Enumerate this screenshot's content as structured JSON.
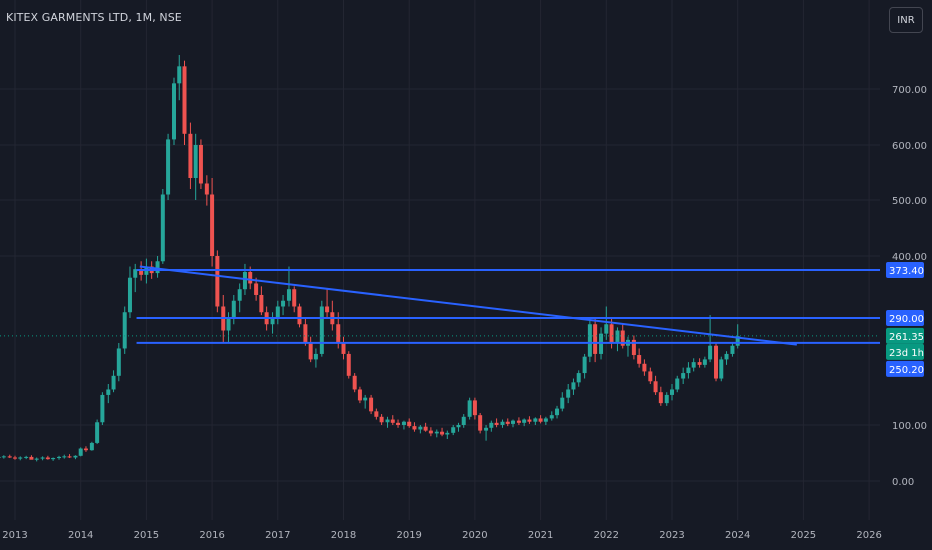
{
  "header": {
    "title": "KITEX GARMENTS LTD, 1M, NSE",
    "currency_button": "INR"
  },
  "colors": {
    "background": "#161a25",
    "up": "#26a69a",
    "down": "#ef5350",
    "lines": "#2962ff",
    "last_price_tag": "#089981"
  },
  "chart_data": {
    "type": "candlestick",
    "symbol": "KITEX GARMENTS LTD",
    "interval": "1M",
    "exchange": "NSE",
    "currency": "INR",
    "y_ticks": [
      "700.00",
      "600.00",
      "500.00",
      "400.00",
      "100.00",
      "0.00"
    ],
    "x_ticks": [
      "2013",
      "2014",
      "2015",
      "2016",
      "2017",
      "2018",
      "2019",
      "2020",
      "2021",
      "2022",
      "2023",
      "2024",
      "2025",
      "2026"
    ],
    "horizontal_levels": [
      373.4,
      290.0,
      250.2
    ],
    "price_tags": [
      {
        "label": "373.40",
        "value": 373.4,
        "color": "#2962ff"
      },
      {
        "label": "290.00",
        "value": 290.0,
        "color": "#2962ff"
      },
      {
        "label": "261.35",
        "value": 261.35,
        "color": "#089981"
      },
      {
        "label": "23d 1h",
        "value": 261.35,
        "color": "#089981",
        "note": "countdown"
      },
      {
        "label": "250.20",
        "value": 250.2,
        "color": "#2962ff"
      }
    ],
    "last_price": 261.35,
    "trendline": {
      "start": {
        "x": 2014.9,
        "y": 380
      },
      "end": {
        "x": 2024.9,
        "y": 247
      }
    },
    "candles": [
      [
        2012.5,
        40,
        45,
        36,
        44
      ],
      [
        2012.58,
        44,
        47,
        40,
        42
      ],
      [
        2012.67,
        42,
        46,
        38,
        41
      ],
      [
        2012.75,
        41,
        44,
        38,
        43
      ],
      [
        2012.83,
        43,
        46,
        40,
        44
      ],
      [
        2012.92,
        44,
        47,
        41,
        42
      ],
      [
        2013.0,
        42,
        45,
        38,
        40
      ],
      [
        2013.08,
        40,
        44,
        37,
        42
      ],
      [
        2013.17,
        42,
        45,
        39,
        43
      ],
      [
        2013.25,
        43,
        46,
        40,
        38
      ],
      [
        2013.33,
        38,
        42,
        35,
        40
      ],
      [
        2013.42,
        40,
        44,
        37,
        42
      ],
      [
        2013.5,
        42,
        45,
        38,
        39
      ],
      [
        2013.58,
        39,
        42,
        36,
        41
      ],
      [
        2013.67,
        41,
        45,
        38,
        43
      ],
      [
        2013.75,
        43,
        47,
        40,
        44
      ],
      [
        2013.83,
        44,
        48,
        41,
        42
      ],
      [
        2013.92,
        42,
        46,
        39,
        45
      ],
      [
        2014.0,
        45,
        60,
        44,
        58
      ],
      [
        2014.08,
        58,
        62,
        52,
        55
      ],
      [
        2014.17,
        55,
        70,
        54,
        68
      ],
      [
        2014.25,
        68,
        110,
        66,
        105
      ],
      [
        2014.33,
        105,
        160,
        100,
        155
      ],
      [
        2014.42,
        155,
        175,
        140,
        165
      ],
      [
        2014.5,
        165,
        200,
        160,
        190
      ],
      [
        2014.58,
        190,
        250,
        180,
        240
      ],
      [
        2014.67,
        240,
        310,
        230,
        300
      ],
      [
        2014.75,
        300,
        380,
        290,
        360
      ],
      [
        2014.83,
        360,
        385,
        335,
        375
      ],
      [
        2014.92,
        375,
        390,
        355,
        365
      ],
      [
        2015.0,
        365,
        395,
        350,
        380
      ],
      [
        2015.08,
        380,
        390,
        358,
        368
      ],
      [
        2015.17,
        368,
        400,
        360,
        390
      ],
      [
        2015.25,
        390,
        520,
        385,
        510
      ],
      [
        2015.33,
        510,
        620,
        500,
        610
      ],
      [
        2015.42,
        610,
        720,
        600,
        710
      ],
      [
        2015.5,
        710,
        760,
        680,
        740
      ],
      [
        2015.58,
        740,
        750,
        600,
        620
      ],
      [
        2015.67,
        620,
        640,
        520,
        540
      ],
      [
        2015.75,
        540,
        620,
        500,
        600
      ],
      [
        2015.83,
        600,
        610,
        520,
        530
      ],
      [
        2015.92,
        530,
        545,
        490,
        510
      ],
      [
        2016.0,
        510,
        540,
        380,
        400
      ],
      [
        2016.08,
        400,
        410,
        300,
        310
      ],
      [
        2016.17,
        310,
        330,
        250,
        270
      ],
      [
        2016.25,
        270,
        300,
        250,
        290
      ],
      [
        2016.33,
        290,
        330,
        280,
        320
      ],
      [
        2016.42,
        320,
        350,
        300,
        340
      ],
      [
        2016.5,
        340,
        385,
        330,
        370
      ],
      [
        2016.58,
        370,
        380,
        340,
        350
      ],
      [
        2016.67,
        350,
        360,
        320,
        330
      ],
      [
        2016.75,
        330,
        345,
        295,
        300
      ],
      [
        2016.83,
        300,
        310,
        270,
        280
      ],
      [
        2016.92,
        280,
        300,
        265,
        290
      ],
      [
        2017.0,
        290,
        320,
        280,
        310
      ],
      [
        2017.08,
        310,
        330,
        295,
        320
      ],
      [
        2017.17,
        320,
        380,
        310,
        340
      ],
      [
        2017.25,
        340,
        345,
        300,
        310
      ],
      [
        2017.33,
        310,
        315,
        275,
        280
      ],
      [
        2017.42,
        280,
        290,
        245,
        250
      ],
      [
        2017.5,
        250,
        260,
        215,
        220
      ],
      [
        2017.58,
        220,
        240,
        205,
        230
      ],
      [
        2017.67,
        230,
        320,
        225,
        310
      ],
      [
        2017.75,
        310,
        340,
        290,
        300
      ],
      [
        2017.83,
        300,
        320,
        270,
        280
      ],
      [
        2017.92,
        280,
        300,
        240,
        250
      ],
      [
        2018.0,
        250,
        260,
        220,
        230
      ],
      [
        2018.08,
        230,
        235,
        185,
        190
      ],
      [
        2018.17,
        190,
        195,
        160,
        165
      ],
      [
        2018.25,
        165,
        170,
        140,
        145
      ],
      [
        2018.33,
        145,
        155,
        130,
        150
      ],
      [
        2018.42,
        150,
        155,
        120,
        125
      ],
      [
        2018.5,
        125,
        130,
        110,
        115
      ],
      [
        2018.58,
        115,
        120,
        100,
        105
      ],
      [
        2018.67,
        105,
        115,
        95,
        110
      ],
      [
        2018.75,
        110,
        118,
        100,
        104
      ],
      [
        2018.83,
        104,
        110,
        95,
        100
      ],
      [
        2018.92,
        100,
        108,
        92,
        106
      ],
      [
        2019.0,
        106,
        112,
        95,
        98
      ],
      [
        2019.08,
        98,
        105,
        88,
        92
      ],
      [
        2019.17,
        92,
        100,
        85,
        97
      ],
      [
        2019.25,
        97,
        104,
        88,
        90
      ],
      [
        2019.33,
        90,
        96,
        80,
        85
      ],
      [
        2019.42,
        85,
        92,
        78,
        88
      ],
      [
        2019.5,
        88,
        95,
        80,
        83
      ],
      [
        2019.58,
        83,
        90,
        75,
        86
      ],
      [
        2019.67,
        86,
        100,
        82,
        96
      ],
      [
        2019.75,
        96,
        104,
        88,
        100
      ],
      [
        2019.83,
        100,
        120,
        95,
        115
      ],
      [
        2019.92,
        115,
        150,
        110,
        145
      ],
      [
        2020.0,
        145,
        150,
        110,
        118
      ],
      [
        2020.08,
        118,
        122,
        85,
        90
      ],
      [
        2020.17,
        90,
        100,
        72,
        95
      ],
      [
        2020.25,
        95,
        108,
        88,
        104
      ],
      [
        2020.33,
        104,
        112,
        96,
        100
      ],
      [
        2020.42,
        100,
        110,
        95,
        106
      ],
      [
        2020.5,
        106,
        112,
        98,
        102
      ],
      [
        2020.58,
        102,
        110,
        96,
        108
      ],
      [
        2020.67,
        108,
        114,
        100,
        104
      ],
      [
        2020.75,
        104,
        112,
        98,
        110
      ],
      [
        2020.83,
        110,
        116,
        102,
        106
      ],
      [
        2020.92,
        106,
        114,
        100,
        112
      ],
      [
        2021.0,
        112,
        118,
        103,
        106
      ],
      [
        2021.08,
        106,
        115,
        100,
        112
      ],
      [
        2021.17,
        112,
        125,
        108,
        118
      ],
      [
        2021.25,
        118,
        135,
        112,
        130
      ],
      [
        2021.33,
        130,
        160,
        125,
        150
      ],
      [
        2021.42,
        150,
        175,
        140,
        165
      ],
      [
        2021.5,
        165,
        185,
        155,
        178
      ],
      [
        2021.58,
        178,
        200,
        170,
        195
      ],
      [
        2021.67,
        195,
        230,
        185,
        225
      ],
      [
        2021.75,
        225,
        290,
        215,
        280
      ],
      [
        2021.83,
        280,
        290,
        215,
        230
      ],
      [
        2021.92,
        230,
        275,
        220,
        265
      ],
      [
        2022.0,
        265,
        310,
        255,
        280
      ],
      [
        2022.08,
        280,
        290,
        240,
        250
      ],
      [
        2022.17,
        250,
        275,
        235,
        270
      ],
      [
        2022.25,
        270,
        280,
        240,
        245
      ],
      [
        2022.33,
        245,
        260,
        225,
        255
      ],
      [
        2022.42,
        255,
        262,
        220,
        228
      ],
      [
        2022.5,
        228,
        240,
        205,
        212
      ],
      [
        2022.58,
        212,
        220,
        190,
        198
      ],
      [
        2022.67,
        198,
        205,
        175,
        180
      ],
      [
        2022.75,
        180,
        190,
        155,
        160
      ],
      [
        2022.83,
        160,
        170,
        135,
        140
      ],
      [
        2022.92,
        140,
        160,
        135,
        155
      ],
      [
        2023.0,
        155,
        175,
        145,
        165
      ],
      [
        2023.08,
        165,
        190,
        160,
        185
      ],
      [
        2023.17,
        185,
        205,
        175,
        195
      ],
      [
        2023.25,
        195,
        215,
        185,
        205
      ],
      [
        2023.33,
        205,
        222,
        198,
        215
      ],
      [
        2023.42,
        215,
        222,
        205,
        210
      ],
      [
        2023.5,
        210,
        225,
        205,
        220
      ],
      [
        2023.58,
        220,
        295,
        215,
        245
      ],
      [
        2023.67,
        245,
        250,
        180,
        185
      ],
      [
        2023.75,
        185,
        225,
        180,
        220
      ],
      [
        2023.83,
        220,
        235,
        210,
        230
      ],
      [
        2023.92,
        230,
        250,
        225,
        245
      ],
      [
        2024.0,
        245,
        280,
        240,
        261
      ]
    ]
  }
}
